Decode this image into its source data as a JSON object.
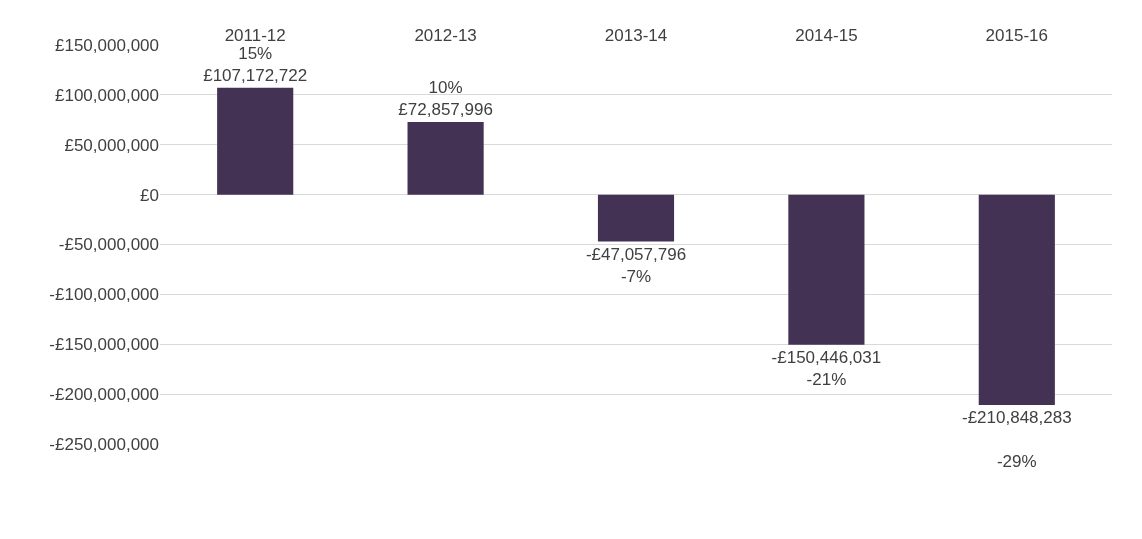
{
  "chart_data": {
    "type": "bar",
    "categories": [
      "2011-12",
      "2012-13",
      "2013-14",
      "2014-15",
      "2015-16"
    ],
    "series": [
      {
        "color": "#433254",
        "values": [
          107172722,
          72857996,
          -47057796,
          -150446031,
          -210848283
        ],
        "value_labels": [
          "15%\n£107,172,722",
          "10%\n£72,857,996",
          "-£47,057,796\n-7%",
          "-£150,446,031\n-21%",
          "-£210,848,283\n\n-29%"
        ]
      }
    ],
    "ylim": [
      -250000000,
      150000000
    ],
    "yticks": [
      {
        "value": 150000000,
        "label": "£150,000,000"
      },
      {
        "value": 100000000,
        "label": "£100,000,000"
      },
      {
        "value": 50000000,
        "label": "£50,000,000"
      },
      {
        "value": 0,
        "label": "£0"
      },
      {
        "value": -50000000,
        "label": "-£50,000,000"
      },
      {
        "value": -100000000,
        "label": "-£100,000,000"
      },
      {
        "value": -150000000,
        "label": "-£150,000,000"
      },
      {
        "value": -200000000,
        "label": "-£200,000,000"
      },
      {
        "value": -250000000,
        "label": "-£250,000,000"
      }
    ],
    "grid": "y",
    "legend": false
  }
}
